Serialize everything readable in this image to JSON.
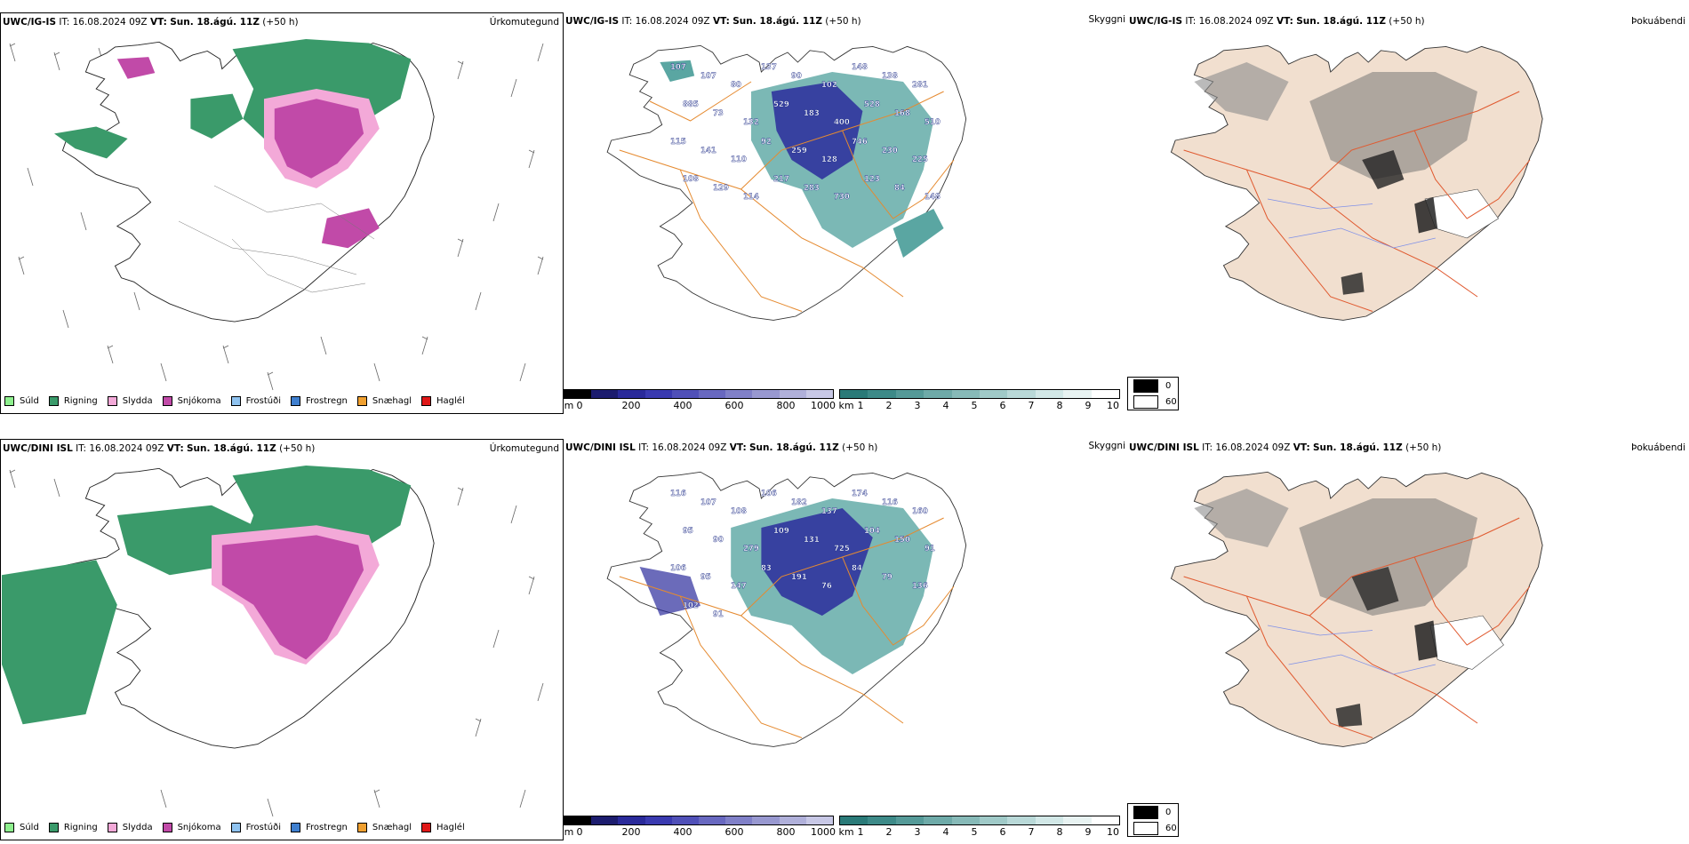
{
  "rows": [
    {
      "model": "UWC/IG-IS",
      "panels": [
        {
          "model": "UWC/IG-IS",
          "it_label": "IT:",
          "it_value": "16.08.2024 09Z",
          "vt_label": "VT:",
          "vt_value": "Sun. 18.ágú. 11Z",
          "lead": "(+50 h)",
          "label": "Úrkomutegund"
        },
        {
          "model": "UWC/IG-IS",
          "it_label": "IT:",
          "it_value": "16.08.2024 09Z",
          "vt_label": "VT:",
          "vt_value": "Sun. 18.ágú. 11Z",
          "lead": "(+50 h)",
          "label": "Skyggni"
        },
        {
          "model": "UWC/IG-IS",
          "it_label": "IT:",
          "it_value": "16.08.2024 09Z",
          "vt_label": "VT:",
          "vt_value": "Sun. 18.ágú. 11Z",
          "lead": "(+50 h)",
          "label": "Þokuábendi"
        }
      ],
      "cloud_base_values": [
        "107",
        "107",
        "80",
        "137",
        "90",
        "102",
        "148",
        "138",
        "281",
        "885",
        "73",
        "132",
        "529",
        "183",
        "400",
        "528",
        "168",
        "510",
        "115",
        "141",
        "110",
        "92",
        "259",
        "128",
        "746",
        "230",
        "225",
        "108",
        "129",
        "114",
        "217",
        "283",
        "730",
        "123",
        "84",
        "148"
      ]
    },
    {
      "model": "UWC/DINI ISL",
      "panels": [
        {
          "model": "UWC/DINI ISL",
          "it_label": "IT:",
          "it_value": "16.08.2024 09Z",
          "vt_label": "VT:",
          "vt_value": "Sun. 18.ágú. 11Z",
          "lead": "(+50 h)",
          "label": "Úrkomutegund"
        },
        {
          "model": "UWC/DINI ISL",
          "it_label": "IT:",
          "it_value": "16.08.2024 09Z",
          "vt_label": "VT:",
          "vt_value": "Sun. 18.ágú. 11Z",
          "lead": "(+50 h)",
          "label": "Skyggni"
        },
        {
          "model": "UWC/DINI ISL",
          "it_label": "IT:",
          "it_value": "16.08.2024 09Z",
          "vt_label": "VT:",
          "vt_value": "Sun. 18.ágú. 11Z",
          "lead": "(+50 h)",
          "label": "Þokuábendi"
        }
      ],
      "cloud_base_values": [
        "116",
        "107",
        "108",
        "106",
        "182",
        "137",
        "174",
        "116",
        "160",
        "95",
        "90",
        "279",
        "109",
        "131",
        "725",
        "104",
        "150",
        "91",
        "106",
        "95",
        "147",
        "83",
        "191",
        "76",
        "84",
        "79",
        "136",
        "102",
        "91"
      ]
    }
  ],
  "precip_legend": [
    {
      "label": "Súld",
      "color": "#8ef08e"
    },
    {
      "label": "Rigning",
      "color": "#3a9a6a"
    },
    {
      "label": "Slydda",
      "color": "#f3a9d8"
    },
    {
      "label": "Snjókoma",
      "color": "#c14aa8"
    },
    {
      "label": "Frostúði",
      "color": "#8fc3f0"
    },
    {
      "label": "Frostregn",
      "color": "#3f7fcf"
    },
    {
      "label": "Snæhagl",
      "color": "#f0a030"
    },
    {
      "label": "Haglél",
      "color": "#e01818"
    }
  ],
  "ceiling_bar": {
    "unit": "m",
    "ticks": [
      "0",
      "200",
      "400",
      "600",
      "800",
      "1000"
    ],
    "colors": [
      "#000000",
      "#1c1c6e",
      "#2a2a9a",
      "#3a3ab0",
      "#5050b8",
      "#6868c0",
      "#8080c8",
      "#9898d0",
      "#b0b0da",
      "#c8c8e6"
    ]
  },
  "visibility_bar": {
    "unit": "km",
    "ticks": [
      "1",
      "2",
      "3",
      "4",
      "5",
      "6",
      "7",
      "8",
      "9",
      "10"
    ],
    "colors": [
      "#2a7a78",
      "#3d8a88",
      "#559a98",
      "#6eaaa8",
      "#87bab8",
      "#a0cac8",
      "#b9d9d8",
      "#d2e8e7",
      "#e8f3f2",
      "#ffffff"
    ]
  },
  "fog_legend": [
    {
      "label": "0",
      "color": "#000000"
    },
    {
      "label": "60",
      "color": "#ffffff"
    }
  ]
}
